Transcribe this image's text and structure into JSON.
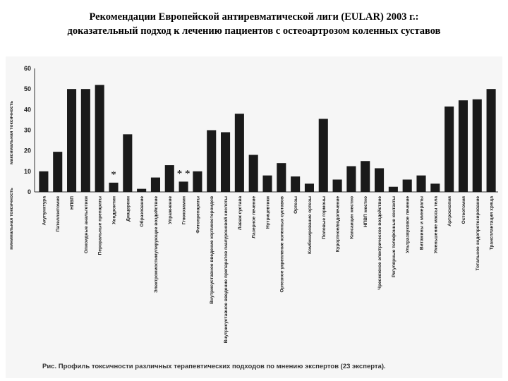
{
  "slide": {
    "title_line1": "Рекомендации Европейской антиревматической лиги (EULAR) 2003 г.:",
    "title_line2": "доказательный подход к лечению пациентов с остеоартрозом коленных суставов"
  },
  "figure": {
    "caption": "Рис. Профиль токсичности различных терапевтических подходов по мнению экспертов (23 эксперта)."
  },
  "chart_data": {
    "type": "bar",
    "title": "",
    "ylabel_top": "максимальная токсичность",
    "ylabel_bottom": "минимальная токсичность",
    "ylim": [
      0,
      60
    ],
    "yticks": [
      0,
      10,
      20,
      30,
      40,
      50,
      60
    ],
    "bar_color": "#1a1a1a",
    "grid": false,
    "categories": [
      "Акупунктура",
      "Пателлэктомия",
      "НПВП",
      "Опиоидные анальгетики",
      "Пероральные препараты",
      "Хондроитин",
      "Диацереин",
      "Образование",
      "Электромиостимулирующее воздействие",
      "Упражнение",
      "Глюкозамин",
      "Фитопрепараты",
      "Внутрисуставное введение кортикостероидов",
      "Внутрисуставное введение препаратов гиалуроновой кислоты",
      "Лаваж сустава",
      "Лазерное лечение",
      "Нутрицевтики",
      "Ортезное укрепление коленных суставов",
      "Ортезы",
      "Комбинирование ортезы",
      "Половые гормоны",
      "Курортное/водолечение",
      "Капсаицин местно",
      "НПВП местно",
      "Чрескожное электрическое воздействие",
      "Регулярные телефонные контакты",
      "Ультразвуковое лечение",
      "Витамины и минералы",
      "Уменьшение массы тела",
      "Артроскопия",
      "Остеотомия",
      "Тотальное эндопротезирование",
      "Трансплантация хряща"
    ],
    "values": [
      10,
      19.5,
      50,
      50,
      52,
      4.5,
      28,
      1.5,
      7,
      13,
      5,
      10,
      30,
      29,
      38,
      18,
      8,
      14,
      7.5,
      4,
      35.5,
      6,
      12.5,
      15,
      11.5,
      2.5,
      6,
      8,
      4,
      41.5,
      44.5,
      45,
      50
    ],
    "annotations": [
      {
        "category": "Хондроитин",
        "text": "*"
      },
      {
        "category": "Глюкозамин",
        "text": "* *"
      }
    ]
  }
}
